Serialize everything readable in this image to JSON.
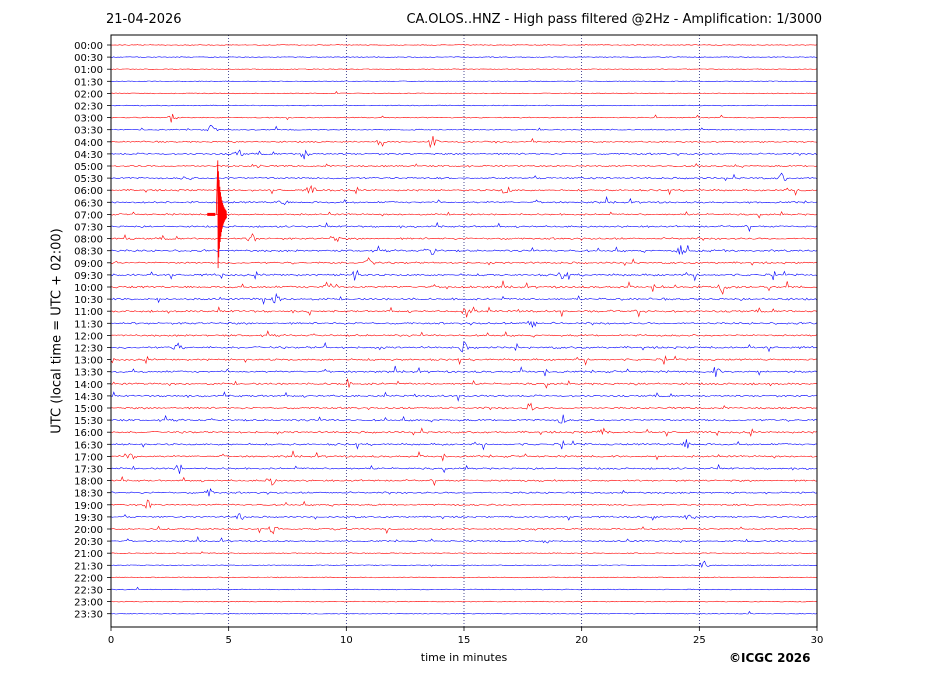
{
  "header": {
    "date": "21-04-2026",
    "title": "CA.OLOS..HNZ - High pass filtered @2Hz - Amplification: 1/3000"
  },
  "footer": {
    "credit": "©ICGC 2026"
  },
  "chart_data": {
    "type": "line",
    "xlabel": "time in minutes",
    "ylabel": "UTC (local time = UTC + 02:00)",
    "xlim": [
      0,
      30
    ],
    "xticks": [
      0,
      5,
      10,
      15,
      20,
      25,
      30
    ],
    "grid": "vertical dotted lines at x = 5, 10, 15, 20, 25",
    "rows": [
      "00:00",
      "00:30",
      "01:00",
      "01:30",
      "02:00",
      "02:30",
      "03:00",
      "03:30",
      "04:00",
      "04:30",
      "05:00",
      "05:30",
      "06:00",
      "06:30",
      "07:00",
      "07:30",
      "08:00",
      "08:30",
      "09:00",
      "09:30",
      "10:00",
      "10:30",
      "11:00",
      "11:30",
      "12:00",
      "12:30",
      "13:00",
      "13:30",
      "14:00",
      "14:30",
      "15:00",
      "15:30",
      "16:00",
      "16:30",
      "17:00",
      "17:30",
      "18:00",
      "18:30",
      "19:00",
      "19:30",
      "20:00",
      "20:30",
      "21:00",
      "21:30",
      "22:00",
      "22:30",
      "23:00",
      "23:30"
    ],
    "trace_colors": [
      "#ff0000",
      "#0000ff"
    ],
    "activity": [
      0.02,
      0.02,
      0.03,
      0.02,
      0.04,
      0.05,
      0.15,
      0.25,
      0.4,
      0.55,
      0.5,
      0.6,
      0.6,
      0.65,
      0.55,
      0.6,
      0.7,
      0.75,
      0.7,
      0.8,
      0.85,
      0.8,
      0.8,
      0.75,
      0.7,
      0.8,
      0.7,
      0.75,
      0.75,
      0.65,
      0.65,
      0.7,
      0.75,
      0.7,
      0.7,
      0.65,
      0.6,
      0.6,
      0.55,
      0.5,
      0.45,
      0.4,
      0.1,
      0.08,
      0.06,
      0.05,
      0.04,
      0.03
    ],
    "events": [
      {
        "row": "03:00",
        "minute": 2.6
      },
      {
        "row": "03:30",
        "minute": 4.3
      },
      {
        "row": "04:00",
        "minute": 11.5
      },
      {
        "row": "04:00",
        "minute": 13.7
      },
      {
        "row": "04:30",
        "minute": 5.4
      },
      {
        "row": "04:30",
        "minute": 8.2
      },
      {
        "row": "05:00",
        "minute": 6.2
      },
      {
        "row": "05:30",
        "minute": 3.2
      },
      {
        "row": "05:30",
        "minute": 28.5
      },
      {
        "row": "06:00",
        "minute": 8.5
      },
      {
        "row": "06:00",
        "minute": 16.8
      },
      {
        "row": "06:30",
        "minute": 7.3
      },
      {
        "row": "08:00",
        "minute": 6.0
      },
      {
        "row": "08:00",
        "minute": 9.5
      },
      {
        "row": "08:30",
        "minute": 13.6
      },
      {
        "row": "08:30",
        "minute": 24.2
      },
      {
        "row": "09:00",
        "minute": 11.0
      },
      {
        "row": "09:30",
        "minute": 10.4
      },
      {
        "row": "09:30",
        "minute": 19.2
      },
      {
        "row": "10:00",
        "minute": 26.0
      },
      {
        "row": "10:00",
        "minute": 9.2
      },
      {
        "row": "10:30",
        "minute": 7.0
      },
      {
        "row": "11:00",
        "minute": 15.1
      },
      {
        "row": "11:30",
        "minute": 17.9
      },
      {
        "row": "12:30",
        "minute": 15.0
      },
      {
        "row": "12:30",
        "minute": 2.8
      },
      {
        "row": "13:30",
        "minute": 25.7
      },
      {
        "row": "14:00",
        "minute": 10.0
      },
      {
        "row": "15:00",
        "minute": 17.8
      },
      {
        "row": "15:30",
        "minute": 19.2
      },
      {
        "row": "16:00",
        "minute": 20.9
      },
      {
        "row": "16:30",
        "minute": 24.5
      },
      {
        "row": "17:00",
        "minute": 0.9
      },
      {
        "row": "17:30",
        "minute": 2.9
      },
      {
        "row": "18:00",
        "minute": 6.8
      },
      {
        "row": "18:30",
        "minute": 4.2
      },
      {
        "row": "19:00",
        "minute": 1.6
      },
      {
        "row": "19:30",
        "minute": 5.5
      },
      {
        "row": "19:30",
        "minute": 24.6
      },
      {
        "row": "20:00",
        "minute": 6.9
      },
      {
        "row": "20:30",
        "minute": 18.4
      },
      {
        "row": "21:30",
        "minute": 25.2
      }
    ],
    "spike": {
      "row": "07:00",
      "minute": 4.6
    }
  }
}
